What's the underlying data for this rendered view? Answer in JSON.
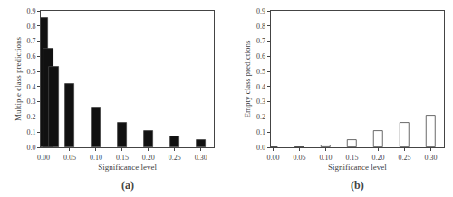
{
  "chart_data": [
    {
      "type": "bar",
      "x": [
        0.0,
        0.01,
        0.02,
        0.05,
        0.1,
        0.15,
        0.2,
        0.25,
        0.3
      ],
      "values": [
        0.85,
        0.65,
        0.53,
        0.42,
        0.26,
        0.16,
        0.105,
        0.07,
        0.05
      ],
      "xlabel": "Significance level",
      "ylabel": "Multiple class predictions",
      "xlim": [
        -0.005,
        0.325
      ],
      "ylim": [
        0.0,
        0.9
      ],
      "xticks": [
        {
          "value": 0.0,
          "label": "0.00"
        },
        {
          "value": 0.05,
          "label": "0.05"
        },
        {
          "value": 0.1,
          "label": "0.10"
        },
        {
          "value": 0.15,
          "label": "0.15"
        },
        {
          "value": 0.2,
          "label": "0.20"
        },
        {
          "value": 0.25,
          "label": "0.25"
        },
        {
          "value": 0.3,
          "label": "0.30"
        }
      ],
      "yticks": [
        {
          "value": 0.0,
          "label": "0.0"
        },
        0.1,
        0.2,
        0.3,
        0.4,
        0.5,
        0.6,
        0.7,
        0.8,
        0.9
      ],
      "annotations": [
        "(a)"
      ],
      "color": "#111111",
      "grid": false
    },
    {
      "type": "bar",
      "x": [
        0.0,
        0.05,
        0.1,
        0.15,
        0.2,
        0.25,
        0.3
      ],
      "values": [
        0.0,
        0.0,
        0.01,
        0.05,
        0.105,
        0.16,
        0.21
      ],
      "xlabel": "Significance level",
      "ylabel": "Empty class predictions",
      "xlim": [
        -0.005,
        0.325
      ],
      "ylim": [
        0.0,
        0.9
      ],
      "xticks": [
        {
          "value": 0.0,
          "label": "0.00"
        },
        {
          "value": 0.05,
          "label": "0.05"
        },
        {
          "value": 0.1,
          "label": "0.10"
        },
        {
          "value": 0.15,
          "label": "0.15"
        },
        {
          "value": 0.2,
          "label": "0.20"
        },
        {
          "value": 0.25,
          "label": "0.25"
        },
        {
          "value": 0.3,
          "label": "0.30"
        }
      ],
      "yticks": [
        {
          "value": 0.0,
          "label": "0.0"
        },
        0.1,
        0.2,
        0.3,
        0.4,
        0.5,
        0.6,
        0.7,
        0.8,
        0.9
      ],
      "annotations": [
        "(b)"
      ],
      "color": "#ffffff",
      "grid": false
    }
  ]
}
